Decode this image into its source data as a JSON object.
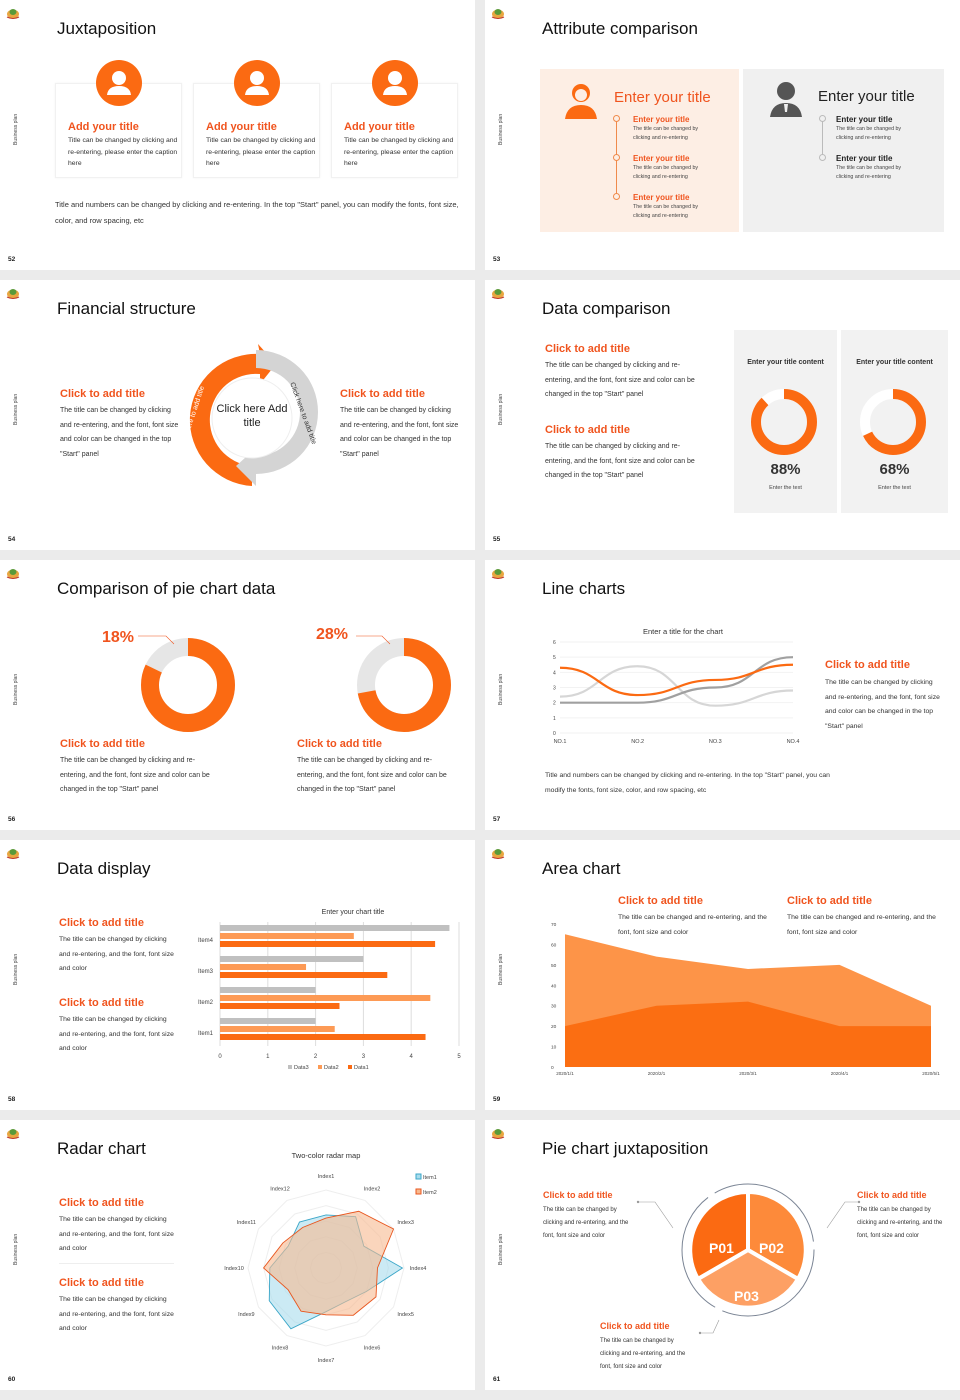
{
  "common": {
    "side_label": "Business plan"
  },
  "colors": {
    "orange": "#fb6a12",
    "light_orange": "#fd9a55",
    "grey": "#c8c8c8",
    "title_orange": "#f0541e"
  },
  "slides": [
    {
      "num": "52",
      "title": "Juxtaposition",
      "cards": [
        {
          "icon": "headset-person-icon",
          "title": "Add your title",
          "text": "Title can be changed by clicking and re-entering, please enter the caption here"
        },
        {
          "icon": "person-icon",
          "title": "Add your title",
          "text": "Title can be changed by clicking and re-entering, please enter the caption here"
        },
        {
          "icon": "presenter-icon",
          "title": "Add your title",
          "text": "Title can be changed by clicking and re-entering, please enter the caption here"
        }
      ],
      "footer": "Title and numbers can be changed by clicking and re-entering. In the top \"Start\" panel, you can modify the fonts, font size, color, and row spacing, etc"
    },
    {
      "num": "53",
      "title": "Attribute comparison",
      "left": {
        "heading": "Enter your title",
        "items": [
          {
            "title": "Enter your title",
            "text": "The title can be changed by clicking and re-entering"
          },
          {
            "title": "Enter your title",
            "text": "The title can be changed by clicking and re-entering"
          },
          {
            "title": "Enter your title",
            "text": "The title can be changed by clicking and re-entering"
          }
        ]
      },
      "right": {
        "heading": "Enter your title",
        "items": [
          {
            "title": "Enter your title",
            "text": "The title can be changed by clicking and re-entering"
          },
          {
            "title": "Enter your title",
            "text": "The title can be changed by clicking and re-entering"
          }
        ]
      }
    },
    {
      "num": "54",
      "title": "Financial structure",
      "left": {
        "title": "Click to add title",
        "text": "The title can be changed by clicking and re-entering, and the font, font size and color can be changed in the top \"Start\" panel"
      },
      "right": {
        "title": "Click to add title",
        "text": "The title can be changed by clicking and re-entering, and the font, font size and color can be changed in the top \"Start\" panel"
      },
      "center": "Click here Add title",
      "arrow_left": "Click here to add title",
      "arrow_right": "Click here to add title"
    },
    {
      "num": "55",
      "title": "Data comparison",
      "blocks": [
        {
          "title": "Click to add title",
          "text": "The title can be changed by clicking and re-entering, and the font, font size and color can be changed in the top \"Start\" panel"
        },
        {
          "title": "Click to add title",
          "text": "The title can be changed by clicking and re-entering, and the font, font size and color can be changed in the top \"Start\" panel"
        }
      ],
      "panels": [
        {
          "title": "Enter your title content",
          "value": "88%",
          "percent": 88,
          "caption": "Enter the text"
        },
        {
          "title": "Enter your title content",
          "value": "68%",
          "percent": 68,
          "caption": "Enter the text"
        }
      ]
    },
    {
      "num": "56",
      "title": "Comparison of pie chart data",
      "items": [
        {
          "label": "18%",
          "percent": 18,
          "title": "Click to add title",
          "text": "The title can be changed by clicking and re-entering, and the font, font size and color can be changed in the top \"Start\" panel"
        },
        {
          "label": "28%",
          "percent": 28,
          "title": "Click to add title",
          "text": "The title can be changed by clicking and re-entering, and the font, font size and color can be changed in the top \"Start\" panel"
        }
      ]
    },
    {
      "num": "57",
      "title": "Line charts",
      "side": {
        "title": "Click to add title",
        "text": "The title can be changed by clicking and re-entering, and the font, font size and color can be changed in the top \"Start\" panel"
      },
      "footer": "Title and numbers can be changed by clicking and re-entering. In the top \"Start\" panel, you can modify the fonts, font size, color, and row spacing, etc"
    },
    {
      "num": "58",
      "title": "Data display",
      "blocks": [
        {
          "title": "Click to add title",
          "text": "The title can be changed by clicking and re-entering, and the font, font size and color"
        },
        {
          "title": "Click to add title",
          "text": "The title can be changed by clicking and re-entering, and the font, font size and color"
        }
      ]
    },
    {
      "num": "59",
      "title": "Area chart",
      "blocks": [
        {
          "title": "Click to add title",
          "text": "The title can be changed and re-entering, and the font, font size and color"
        },
        {
          "title": "Click to add title",
          "text": "The title can be changed and re-entering, and the font, font size and color"
        }
      ]
    },
    {
      "num": "60",
      "title": "Radar chart",
      "blocks": [
        {
          "title": "Click to add title",
          "text": "The title can be changed by clicking and re-entering, and the font, font size and color"
        },
        {
          "title": "Click to add title",
          "text": "The title can be changed by clicking and re-entering, and the font, font size and color"
        }
      ]
    },
    {
      "num": "61",
      "title": "Pie chart juxtaposition",
      "segments": [
        "P01",
        "P02",
        "P03"
      ],
      "blocks": [
        {
          "title": "Click to add title",
          "text": "The title can be changed by clicking and re-entering, and the font, font size and color"
        },
        {
          "title": "Click to add title",
          "text": "The title can be changed by clicking and re-entering, and the font, font size and color"
        },
        {
          "title": "Click to add title",
          "text": "The title can be changed by clicking and re-entering, and the font, font size and color"
        }
      ]
    }
  ],
  "chart_data": [
    {
      "type": "line",
      "title": "Enter a title for the chart",
      "categories": [
        "NO.1",
        "NO.2",
        "NO.3",
        "NO.4"
      ],
      "ylim": [
        0,
        6
      ],
      "yticks": [
        0,
        1,
        2,
        3,
        4,
        5,
        6
      ],
      "series": [
        {
          "color": "#fb6a12",
          "values": [
            4.3,
            2.5,
            3.5,
            4.5
          ]
        },
        {
          "color": "#d6d6d6",
          "values": [
            2.4,
            4.4,
            1.8,
            2.8
          ]
        },
        {
          "color": "#a0a0a0",
          "values": [
            2.0,
            2.0,
            3.0,
            5.0
          ]
        }
      ]
    },
    {
      "type": "bar",
      "orientation": "horizontal",
      "title": "Enter your chart title",
      "categories": [
        "Item1",
        "Item2",
        "Item3",
        "Item4"
      ],
      "xlim": [
        0,
        5
      ],
      "xticks": [
        0,
        1,
        2,
        3,
        4,
        5
      ],
      "grid": true,
      "legend": "bottom",
      "series": [
        {
          "name": "Data3",
          "color": "#c0c0c0",
          "values": [
            2.0,
            2.0,
            3.0,
            4.8
          ]
        },
        {
          "name": "Data2",
          "color": "#fd9a55",
          "values": [
            2.4,
            4.4,
            1.8,
            2.8
          ]
        },
        {
          "name": "Data1",
          "color": "#fb6a12",
          "values": [
            4.3,
            2.5,
            3.5,
            4.5
          ]
        }
      ]
    },
    {
      "type": "area",
      "categories": [
        "2020/1/1",
        "2020/2/1",
        "2020/3/1",
        "2020/4/1",
        "2020/5/1"
      ],
      "ylim": [
        0,
        70
      ],
      "yticks": [
        0,
        10,
        20,
        30,
        40,
        50,
        60,
        70
      ],
      "series": [
        {
          "color": "#fd9448",
          "values": [
            65,
            54,
            48,
            50,
            30
          ]
        },
        {
          "color": "#fb6e12",
          "values": [
            20,
            30,
            32,
            20,
            20
          ]
        }
      ]
    },
    {
      "type": "radar",
      "title": "Two-color radar map",
      "categories": [
        "Index1",
        "Index2",
        "Index3",
        "Index4",
        "Index5",
        "Index6",
        "Index7",
        "Index8",
        "Index9",
        "Index10",
        "Index11",
        "Index12"
      ],
      "rmax": 5,
      "legend": "top-right",
      "series": [
        {
          "name": "Item1",
          "color": "#3aa6c8",
          "fill": "#a8dcec",
          "values": [
            3.4,
            3.8,
            2.8,
            4.9,
            3.0,
            2.5,
            2.8,
            4.5,
            4.2,
            3.6,
            2.8,
            3.4
          ]
        },
        {
          "name": "Item2",
          "color": "#e8561e",
          "fill": "#f7b98f",
          "values": [
            3.2,
            4.2,
            5.0,
            3.3,
            3.7,
            3.5,
            3.0,
            3.2,
            2.8,
            4.0,
            3.2,
            3.0
          ]
        }
      ]
    }
  ]
}
